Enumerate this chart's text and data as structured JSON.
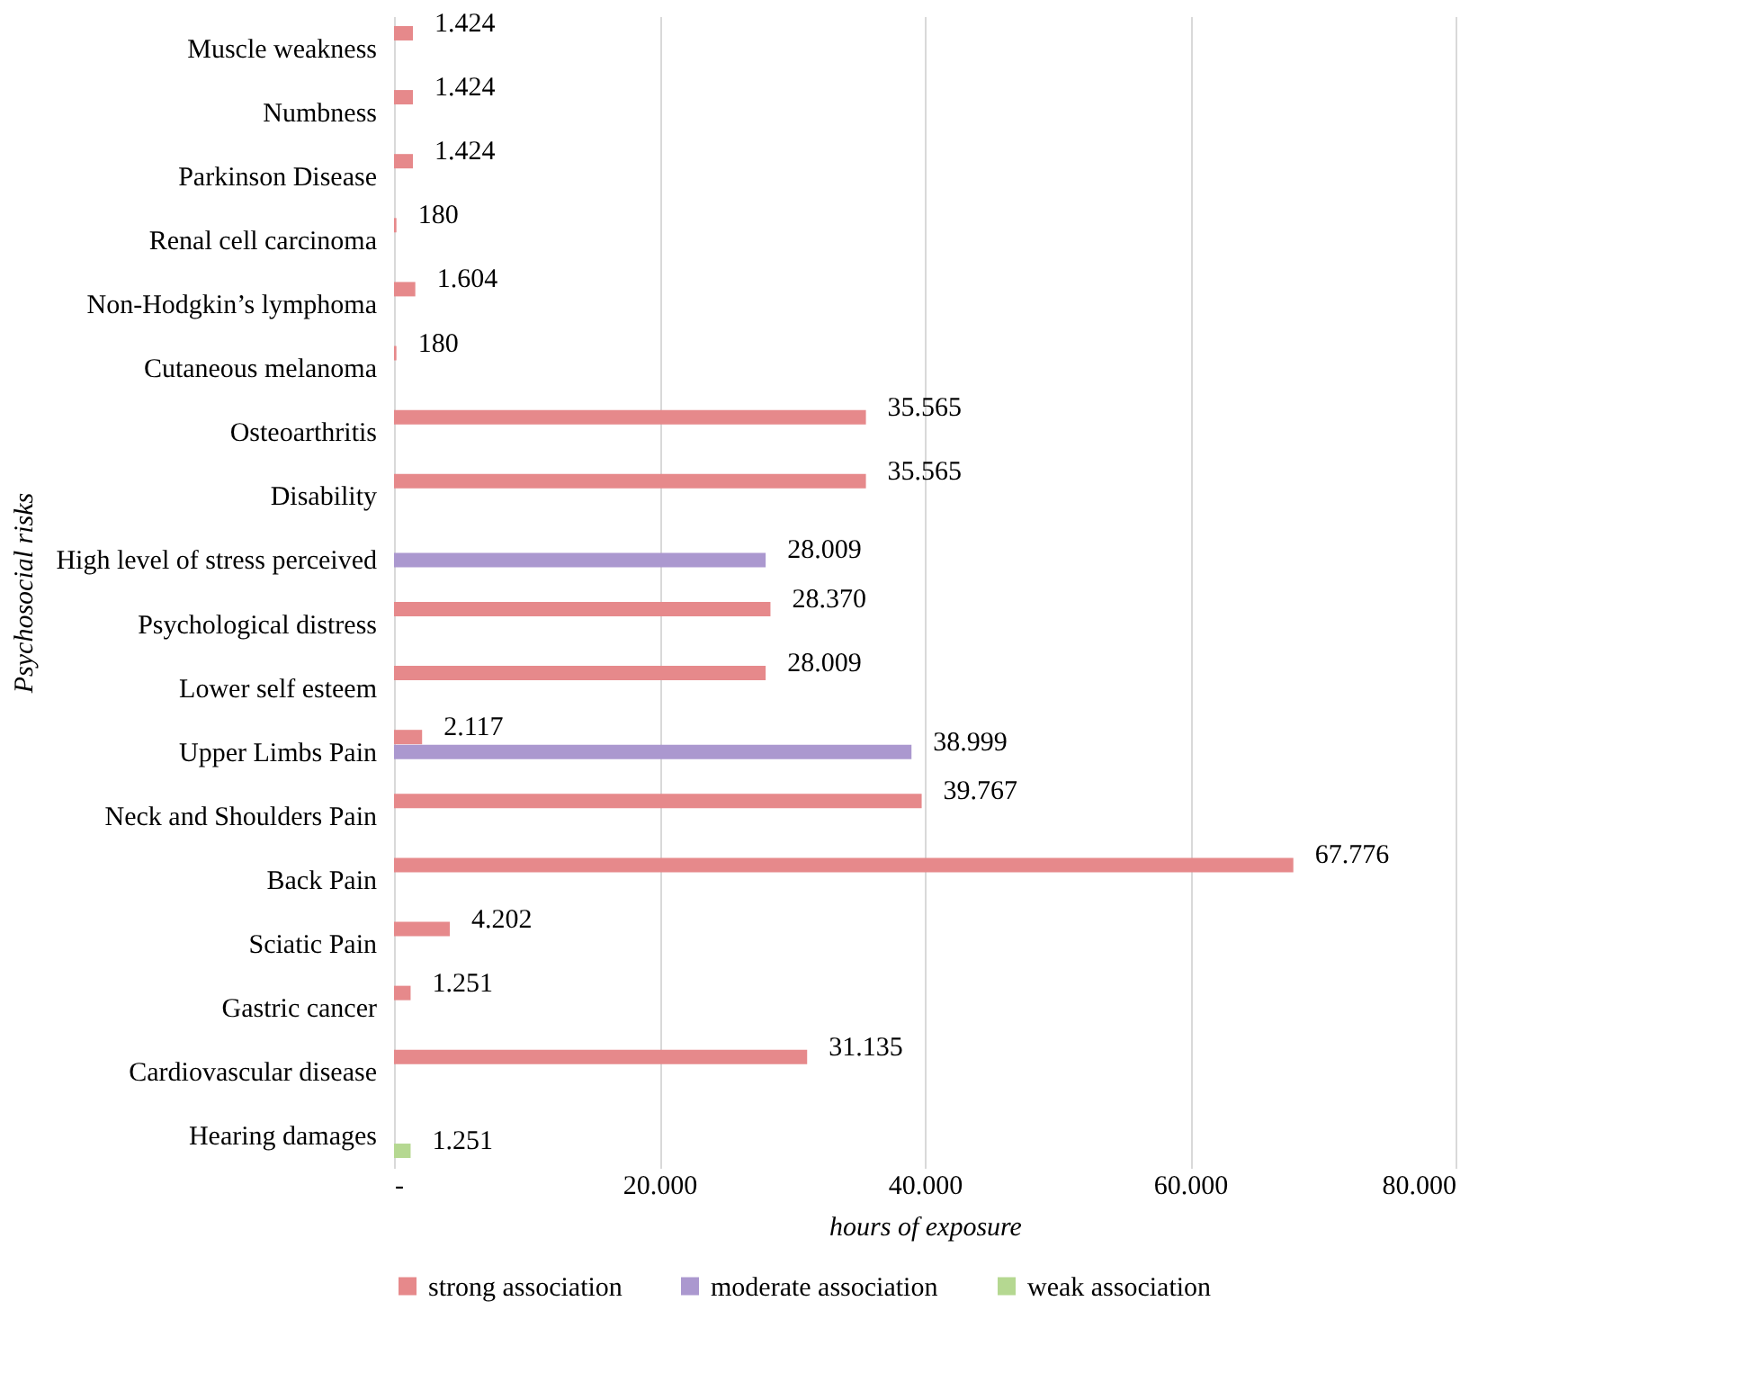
{
  "chart_data": {
    "type": "bar",
    "orientation": "horizontal",
    "ylabel": "Psychosocial risks",
    "xlabel": "hours of exposure",
    "categories": [
      "Muscle weakness",
      "Numbness",
      "Parkinson Disease",
      "Renal cell carcinoma",
      "Non-Hodgkin’s lymphoma",
      "Cutaneous melanoma",
      "Osteoarthritis",
      "Disability",
      "High level of stress perceived",
      "Psychological distress",
      "Lower self esteem",
      "Upper Limbs Pain",
      "Neck and Shoulders Pain",
      "Back Pain",
      "Sciatic Pain",
      "Gastric cancer",
      "Cardiovascular disease",
      "Hearing damages"
    ],
    "series": [
      {
        "name": "strong association",
        "color": "#e6898b",
        "values": [
          1424,
          1424,
          1424,
          180,
          1604,
          180,
          35565,
          35565,
          null,
          28370,
          28009,
          2117,
          39767,
          67776,
          4202,
          1251,
          31135,
          null
        ],
        "value_labels": [
          "1.424",
          "1.424",
          "1.424",
          "180",
          "1.604",
          "180",
          "35.565",
          "35.565",
          null,
          "28.370",
          "28.009",
          "2.117",
          "39.767",
          "67.776",
          "4.202",
          "1.251",
          "31.135",
          null
        ]
      },
      {
        "name": "moderate association",
        "color": "#ab98cf",
        "values": [
          null,
          null,
          null,
          null,
          null,
          null,
          null,
          null,
          28009,
          null,
          null,
          38999,
          null,
          null,
          null,
          null,
          null,
          null
        ],
        "value_labels": [
          null,
          null,
          null,
          null,
          null,
          null,
          null,
          null,
          "28.009",
          null,
          null,
          "38.999",
          null,
          null,
          null,
          null,
          null,
          null
        ]
      },
      {
        "name": "weak association",
        "color": "#b5d891",
        "values": [
          null,
          null,
          null,
          null,
          null,
          null,
          null,
          null,
          null,
          null,
          null,
          null,
          null,
          null,
          null,
          null,
          null,
          1251
        ],
        "value_labels": [
          null,
          null,
          null,
          null,
          null,
          null,
          null,
          null,
          null,
          null,
          null,
          null,
          null,
          null,
          null,
          null,
          null,
          "1.251"
        ]
      }
    ],
    "xlim": [
      0,
      80000
    ],
    "xticks": [
      {
        "value": 0,
        "label": "-"
      },
      {
        "value": 20000,
        "label": "20.000"
      },
      {
        "value": 40000,
        "label": "40.000"
      },
      {
        "value": 60000,
        "label": "60.000"
      },
      {
        "value": 80000,
        "label": "80.000"
      }
    ],
    "grid": "x",
    "legend": "bottom"
  }
}
